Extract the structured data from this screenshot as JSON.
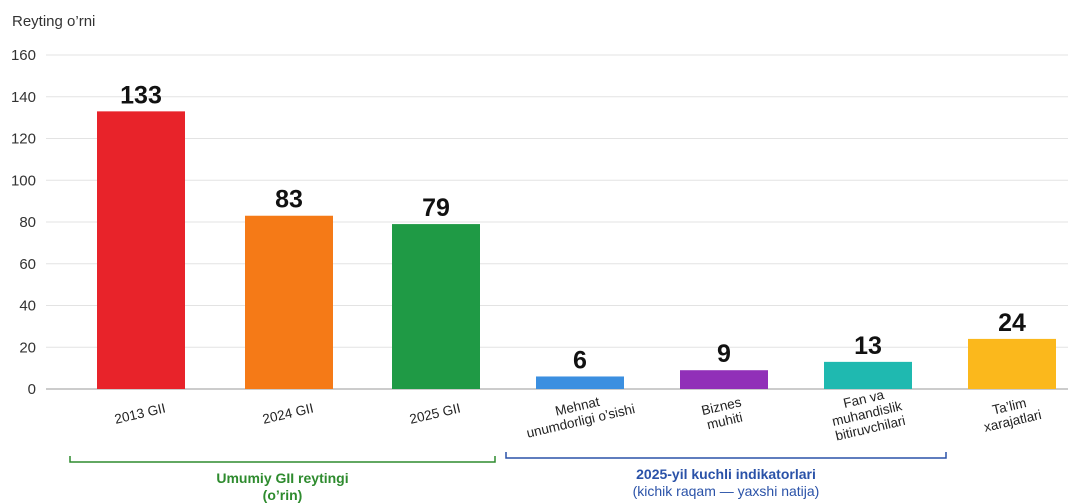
{
  "chart_data": {
    "type": "bar",
    "ylabel": "Reyting o’rni",
    "ylim": [
      0,
      160
    ],
    "yticks": [
      0,
      20,
      40,
      60,
      80,
      100,
      120,
      140,
      160
    ],
    "grid": true,
    "categories": [
      [
        "2013 GII"
      ],
      [
        "2024 GII"
      ],
      [
        "2025 GII"
      ],
      [
        "Mehnat",
        "unumdorligi o’sishi"
      ],
      [
        "Biznes",
        "muhiti"
      ],
      [
        "Fan va",
        "muhandislik",
        "bitiruvchilari"
      ],
      [
        "Ta’lim",
        "xarajatlari"
      ]
    ],
    "values": [
      133,
      83,
      79,
      6,
      9,
      13,
      24
    ],
    "colors": [
      "#e8232a",
      "#f57a17",
      "#1f9a45",
      "#3b8fe0",
      "#9130b8",
      "#1fb9b0",
      "#fbb81c"
    ],
    "groups": [
      {
        "label": "Umumiy GII reytingi",
        "sublabel": "(o’rin)",
        "from": 0,
        "to": 2,
        "color": "#2e8b2e"
      },
      {
        "label": "2025-yil kuchli indikatorlari",
        "sublabel": "(kichik raqam — yaxshi natija)",
        "from": 3,
        "to": 6,
        "color": "#2a52a8"
      }
    ]
  }
}
